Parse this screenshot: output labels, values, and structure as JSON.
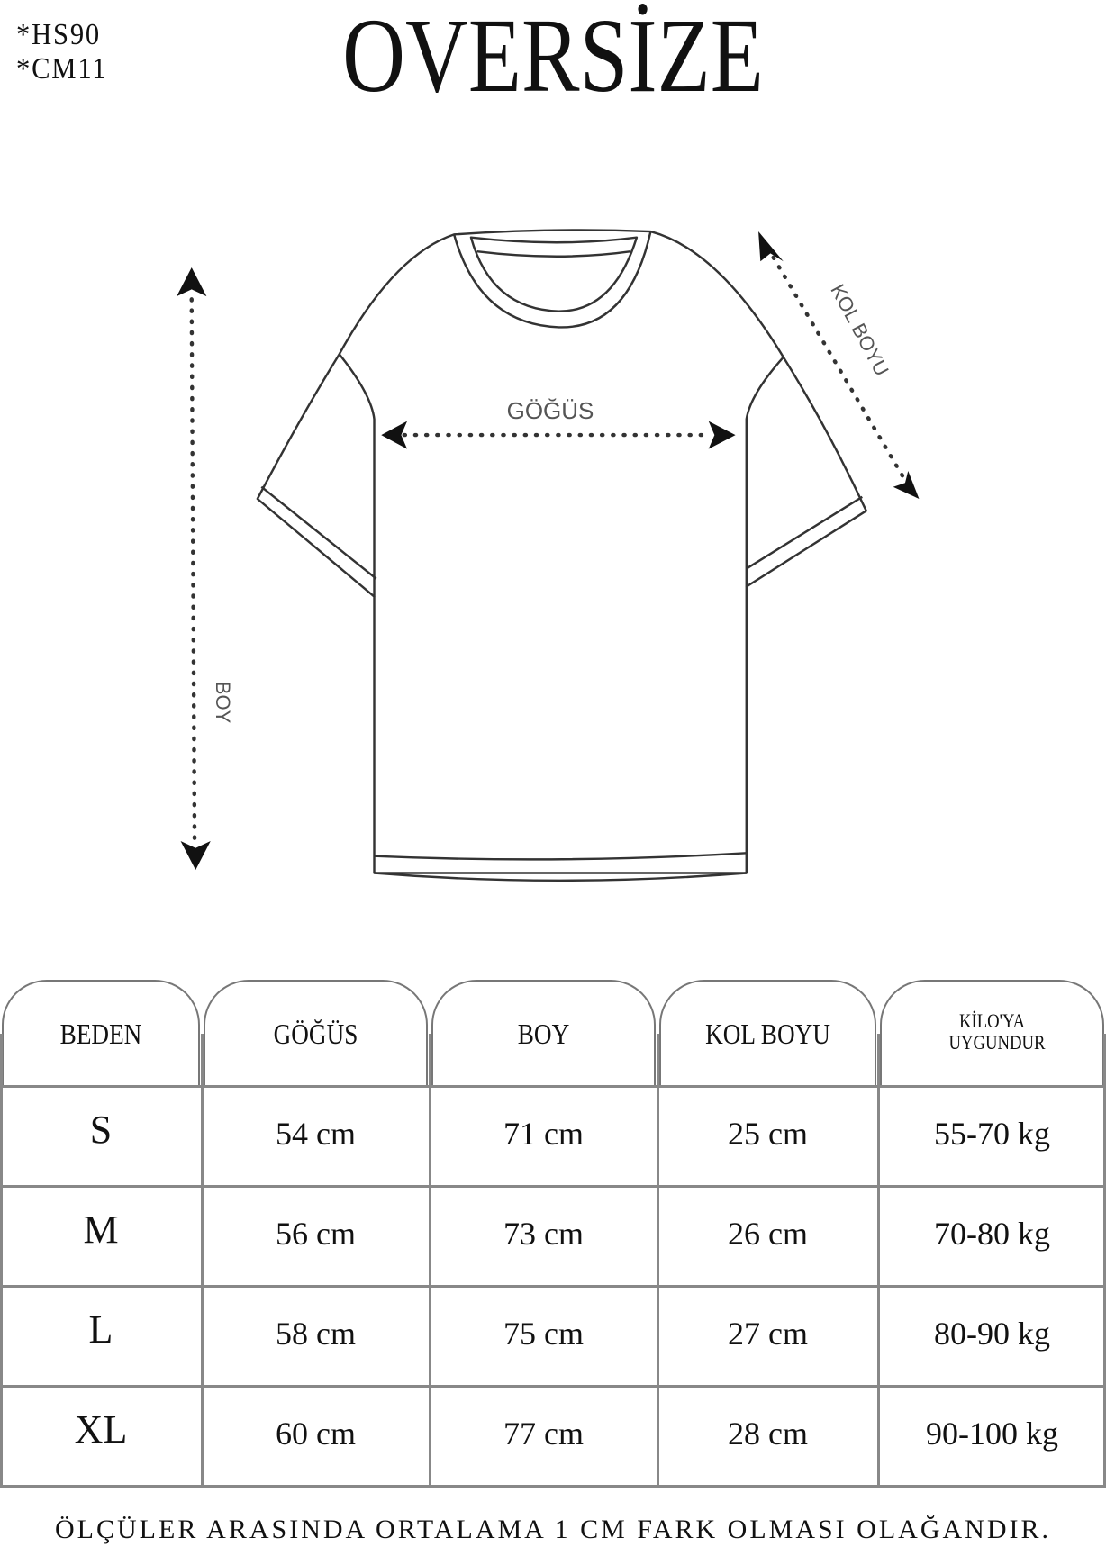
{
  "codes": [
    "*HS90",
    "*CM11"
  ],
  "title": "OVERSİZE",
  "diagram_labels": {
    "chest": "GÖĞÜS",
    "length": "BOY",
    "sleeve": "KOL BOYU"
  },
  "table": {
    "headers": [
      "BEDEN",
      "GÖĞÜS",
      "BOY",
      "KOL BOYU",
      "KİLO'YA UYGUNDUR"
    ],
    "rows": [
      [
        "S",
        "54 cm",
        "71 cm",
        "25  cm",
        "55-70 kg"
      ],
      [
        "M",
        "56 cm",
        "73 cm",
        "26 cm",
        "70-80 kg"
      ],
      [
        "L",
        "58 cm",
        "75 cm",
        "27 cm",
        "80-90 kg"
      ],
      [
        "XL",
        "60 cm",
        "77 cm",
        "28 cm",
        "90-100 kg"
      ]
    ]
  },
  "footer": "ÖLÇÜLER ARASINDA ORTALAMA 1 CM FARK OLMASI OLAĞANDIR."
}
